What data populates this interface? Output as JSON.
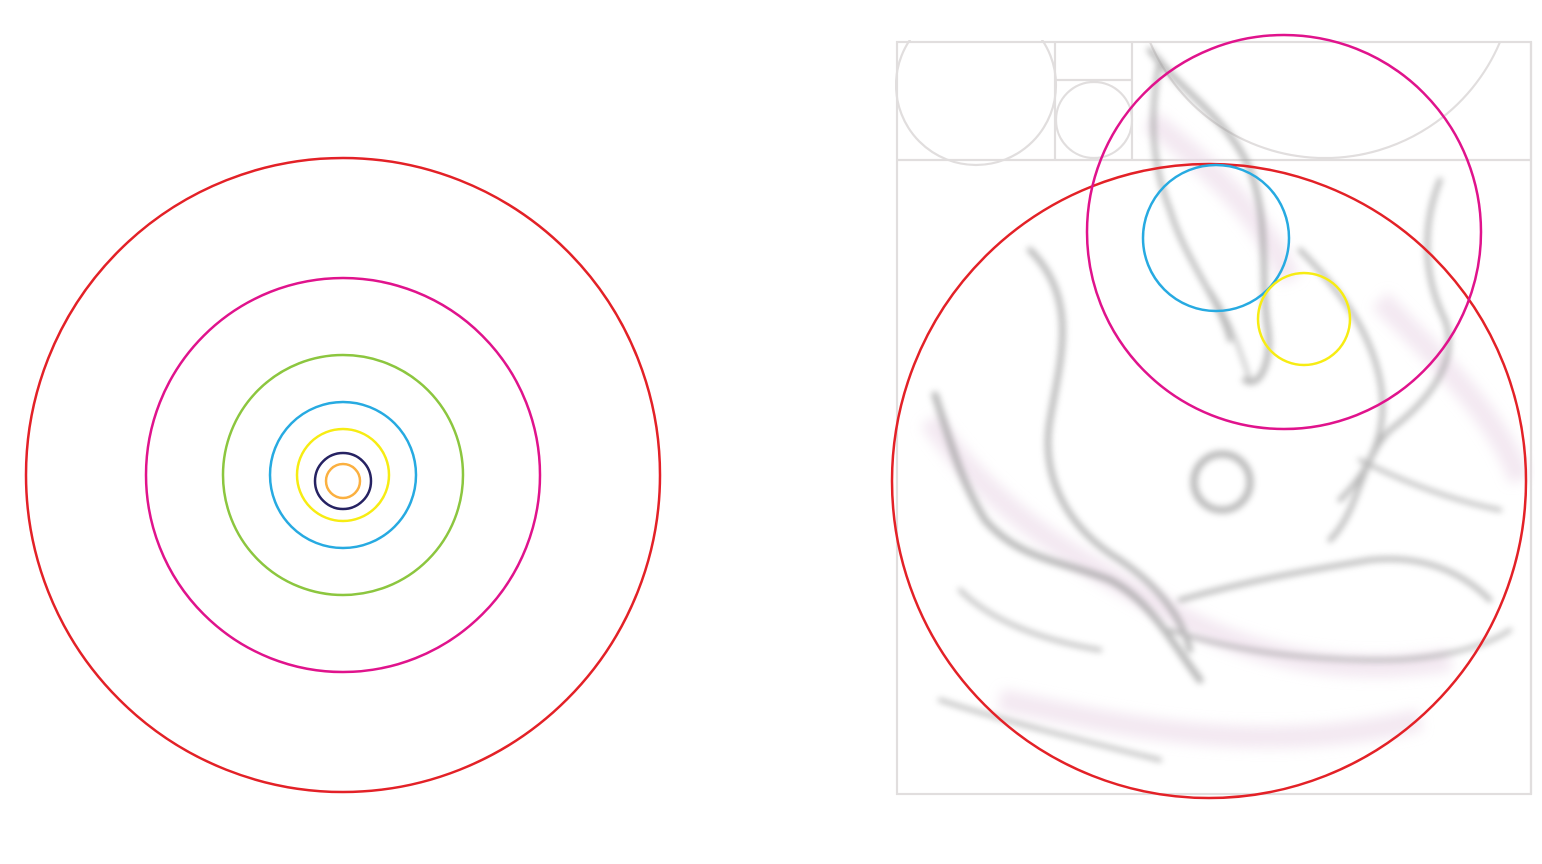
{
  "left_figure": {
    "description_visible_text": "",
    "rings": [
      {
        "name": "red-ring",
        "color": "#e32127"
      },
      {
        "name": "magenta-ring",
        "color": "#e0138c"
      },
      {
        "name": "green-ring",
        "color": "#8cc63f"
      },
      {
        "name": "blue-ring",
        "color": "#27aae1"
      },
      {
        "name": "yellow-ring",
        "color": "#f7ec13"
      },
      {
        "name": "navy-ring",
        "color": "#262262"
      },
      {
        "name": "orange-ring",
        "color": "#fbb040"
      }
    ]
  },
  "right_figure": {
    "grid_color": "#e1dede",
    "sketch_color": "#9a9a9a",
    "sketch_tint": "#e9d6e6",
    "overlay_circles": [
      {
        "name": "red-circle",
        "color": "#e32127"
      },
      {
        "name": "magenta-circle",
        "color": "#e0138c"
      },
      {
        "name": "blue-circle",
        "color": "#27aae1"
      },
      {
        "name": "yellow-circle",
        "color": "#f7ec13"
      }
    ]
  }
}
